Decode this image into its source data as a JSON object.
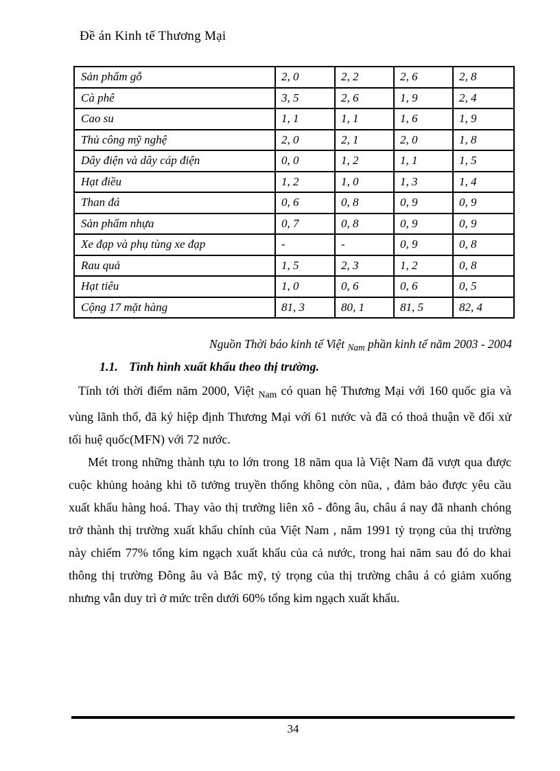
{
  "header": {
    "title": "Đề án Kinh tế Thương Mại"
  },
  "table": {
    "rows": [
      {
        "label": "Sản phẩm gỗ",
        "values": [
          "2, 0",
          "2, 2",
          "2, 6",
          "2, 8"
        ]
      },
      {
        "label": "Cà phê",
        "values": [
          "3, 5",
          "2, 6",
          "1, 9",
          "2, 4"
        ]
      },
      {
        "label": "Cao su",
        "values": [
          "1, 1",
          "1, 1",
          "1, 6",
          "1, 9"
        ]
      },
      {
        "label": "Thủ công mỹ nghệ",
        "values": [
          "2, 0",
          "2, 1",
          "2, 0",
          "1, 8"
        ]
      },
      {
        "label": "Dây điện và dây cáp điện",
        "values": [
          "0, 0",
          "1, 2",
          "1, 1",
          "1, 5"
        ]
      },
      {
        "label": "Hạt điều",
        "values": [
          "1, 2",
          "1, 0",
          "1, 3",
          "1, 4"
        ]
      },
      {
        "label": "Than đá",
        "values": [
          "0, 6",
          "0, 8",
          "0, 9",
          "0, 9"
        ]
      },
      {
        "label": "Sản phẩm nhựa",
        "values": [
          "0, 7",
          "0, 8",
          "0, 9",
          "0, 9"
        ]
      },
      {
        "label": "Xe đạp và phụ tùng xe đạp",
        "values": [
          "-",
          "-",
          "0, 9",
          "0, 8"
        ]
      },
      {
        "label": "Rau quả",
        "values": [
          "1, 5",
          "2, 3",
          "1, 2",
          "0, 8"
        ]
      },
      {
        "label": "Hạt tiêu",
        "values": [
          "1, 0",
          "0, 6",
          "0, 6",
          "0, 5"
        ]
      },
      {
        "label": "Cộng 17 mặt hàng",
        "values": [
          "81, 3",
          "80, 1",
          "81, 5",
          "82, 4"
        ]
      }
    ]
  },
  "source_note": {
    "segments": [
      {
        "text": "Nguồn Thời báo kinh tế Việt "
      },
      {
        "text": "Nam",
        "sub": true
      },
      {
        "text": " phần kinh tế năm 2003 - 2004"
      }
    ]
  },
  "section": {
    "number": "1.1.",
    "title": "Tình hình xuất khẩu theo thị trường."
  },
  "paragraphs": [
    {
      "segments": [
        {
          "text": "Tính tới thời điểm năm 2000, Việt "
        },
        {
          "text": "Nam",
          "sub": true
        },
        {
          "text": " có quan hệ Thương Mại với 160 quốc gia và vùng lãnh thổ, đã ký hiệp định Thương Mại với 61 nước và đã có thoả thuận về đối xử tối huệ quốc(MFN) với 72 nước."
        }
      ]
    },
    {
      "segments": [
        {
          "text": "Mét trong những thành tựu to lớn trong 18 năm qua là Việt Nam đã vượt qua được cuộc khủng hoảng khi tõ tưởng truyền thống không còn nũa, , đảm bảo được yêu cầu xuất khẩu hàng hoá. Thay vào thị trường liên xô  - đông âu, châu á nay đã nhanh chóng trở thành thị trường xuất khẩu chính của Việt Nam , năm 1991 tỷ trọng của thị trường này chiếm 77% tổng kim ngạch xuất khẩu của cả nước, trong hai năm sau đó do khai thông thị trường Đông âu và Bắc mỹ, tỷ trọng của thị trường châu á có giảm xuống nhưng vẫn duy trì ở mức trên dưới 60% tổng kim ngạch xuất khẩu."
        }
      ]
    }
  ],
  "footer": {
    "page_number": "34"
  }
}
